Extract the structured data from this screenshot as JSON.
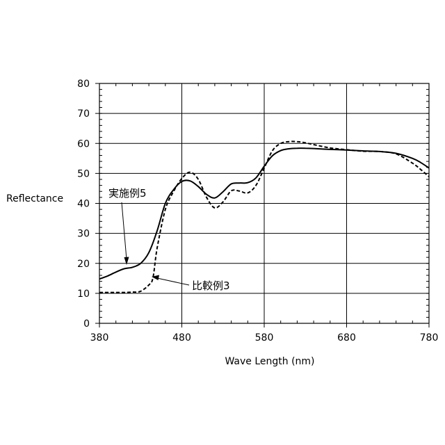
{
  "chart_data": {
    "type": "line",
    "title": "",
    "xlabel": "Wave Length (nm)",
    "ylabel": "Reflectance",
    "xlim": [
      380,
      780
    ],
    "ylim": [
      0,
      80
    ],
    "x_ticks": [
      380,
      480,
      580,
      680,
      780
    ],
    "y_ticks": [
      0,
      10,
      20,
      30,
      40,
      50,
      60,
      70,
      80
    ],
    "grid": true,
    "legend": "none",
    "series": [
      {
        "name": "実施例5",
        "style": "solid",
        "color": "#000000",
        "x": [
          380,
          390,
          400,
          410,
          420,
          430,
          440,
          450,
          460,
          470,
          480,
          490,
          500,
          510,
          520,
          530,
          540,
          550,
          560,
          570,
          580,
          590,
          600,
          610,
          620,
          630,
          640,
          660,
          680,
          700,
          720,
          740,
          760,
          770,
          780
        ],
        "y": [
          14.8,
          15.8,
          17.1,
          18.2,
          18.7,
          20.0,
          23.6,
          30.8,
          40.0,
          44.6,
          47.3,
          47.5,
          45.6,
          43.0,
          41.8,
          43.9,
          46.5,
          46.8,
          46.9,
          48.5,
          52.4,
          55.9,
          57.6,
          58.2,
          58.4,
          58.4,
          58.3,
          58.0,
          57.8,
          57.5,
          57.3,
          56.7,
          55.0,
          53.6,
          51.8
        ]
      },
      {
        "name": "比較例3",
        "style": "dashed",
        "color": "#000000",
        "x": [
          380,
          390,
          400,
          410,
          420,
          430,
          440,
          445,
          450,
          460,
          470,
          480,
          490,
          500,
          510,
          520,
          530,
          540,
          550,
          560,
          570,
          580,
          590,
          600,
          610,
          620,
          630,
          640,
          660,
          680,
          700,
          720,
          740,
          760,
          770,
          780
        ],
        "y": [
          10.3,
          10.3,
          10.3,
          10.3,
          10.4,
          10.7,
          12.8,
          15.2,
          25.0,
          38.0,
          44.0,
          48.3,
          50.4,
          48.0,
          42.0,
          38.5,
          40.5,
          44.2,
          44.1,
          43.5,
          46.0,
          51.8,
          57.6,
          60.0,
          60.6,
          60.6,
          60.2,
          59.6,
          58.5,
          57.9,
          57.4,
          57.3,
          56.5,
          53.4,
          51.3,
          48.9
        ]
      }
    ],
    "annotations": [
      {
        "text": "実施例5",
        "series": 0,
        "x": 413,
        "y": 22
      },
      {
        "text": "比較例3",
        "series": 1,
        "x": 444,
        "y": 15
      }
    ]
  }
}
